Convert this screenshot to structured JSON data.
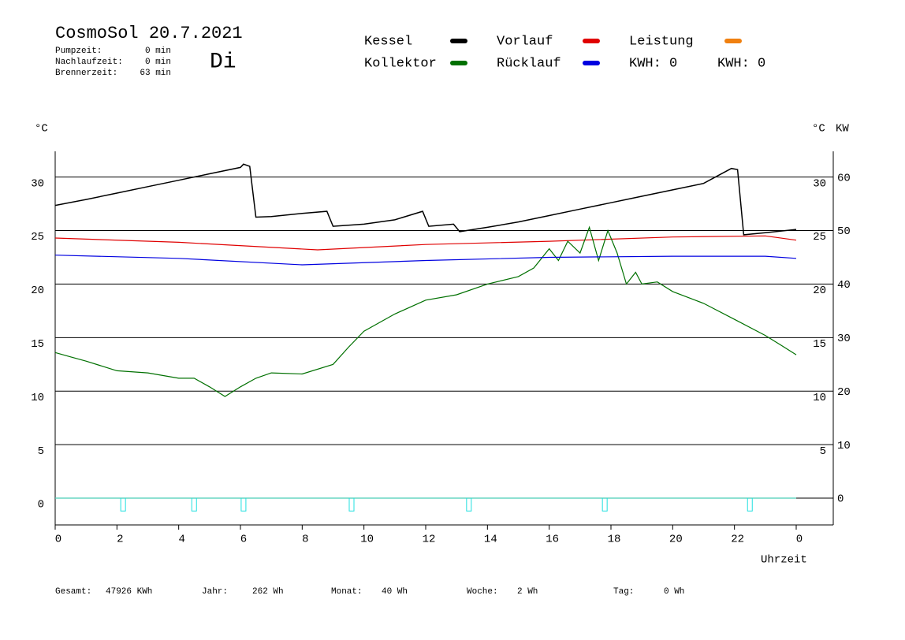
{
  "chart_data": {
    "type": "line",
    "title": "CosmoSol 20.7.2021",
    "weekday": "Di",
    "info": [
      [
        "Pumpzeit:",
        "0 min"
      ],
      [
        "Nachlaufzeit:",
        "0 min"
      ],
      [
        "Brennerzeit:",
        "63 min"
      ]
    ],
    "kwh_labels": [
      {
        "text": "KWH: 0",
        "color": "#e08a1e"
      },
      {
        "text": "KWH: 0",
        "color": "#8030a0"
      }
    ],
    "ylabel": "°C",
    "ylabel_right": "°C",
    "y2label": "KW",
    "xlabel": "Uhrzeit",
    "xlim": [
      0,
      25.2
    ],
    "xticks": [
      0,
      2,
      4,
      6,
      8,
      10,
      12,
      14,
      16,
      18,
      20,
      22,
      {
        "value": 24,
        "label": "0"
      }
    ],
    "ylim": [
      -2.5,
      32.4
    ],
    "yticks": [
      0,
      5,
      10,
      15,
      20,
      25,
      30
    ],
    "y_right_ticks": [
      5,
      10,
      15,
      20,
      25,
      30
    ],
    "y2lim": [
      -5,
      64.8
    ],
    "y2ticks": [
      0,
      10,
      20,
      30,
      40,
      50,
      60
    ],
    "grid": true,
    "series": [
      {
        "name": "Kessel",
        "color": "#000000",
        "x": [
          0,
          1,
          2,
          3,
          4,
          5,
          6,
          6.1,
          6.3,
          6.5,
          7,
          8,
          8.8,
          9,
          10,
          11,
          11.9,
          12.1,
          12.9,
          13.1,
          14,
          15,
          16,
          17,
          18,
          19,
          20,
          21,
          21.9,
          22.1,
          22.3,
          23,
          24
        ],
        "values": [
          27.35,
          27.9,
          28.5,
          29.1,
          29.7,
          30.3,
          30.9,
          31.2,
          31.0,
          26.25,
          26.3,
          26.6,
          26.8,
          25.4,
          25.6,
          26.0,
          26.8,
          25.4,
          25.6,
          24.9,
          25.3,
          25.8,
          26.4,
          27.0,
          27.6,
          28.2,
          28.8,
          29.4,
          30.8,
          30.7,
          24.6,
          24.8,
          25.1
        ]
      },
      {
        "name": "Vorlauf",
        "color": "#e00000",
        "x": [
          0,
          4,
          8.5,
          12,
          16,
          20,
          23,
          24
        ],
        "values": [
          24.3,
          23.9,
          23.2,
          23.7,
          24.0,
          24.4,
          24.5,
          24.1
        ]
      },
      {
        "name": "Leistung",
        "color": "#f08010",
        "axis": "y2",
        "x": [
          0,
          24
        ],
        "values": [
          0,
          0
        ]
      },
      {
        "name": "Kollektor",
        "color": "#007000",
        "x": [
          0,
          0.5,
          1,
          2,
          3,
          4,
          4.5,
          5,
          5.5,
          6,
          6.5,
          7,
          8,
          9,
          9.5,
          10,
          11,
          12,
          13,
          14,
          15,
          15.5,
          16,
          16.3,
          16.6,
          17,
          17.3,
          17.6,
          17.9,
          18.2,
          18.5,
          18.8,
          19,
          19.5,
          20,
          21,
          22,
          23,
          23.5,
          24
        ],
        "values": [
          13.6,
          13.2,
          12.8,
          11.9,
          11.7,
          11.2,
          11.2,
          10.4,
          9.5,
          10.4,
          11.2,
          11.7,
          11.6,
          12.5,
          14.1,
          15.6,
          17.2,
          18.5,
          19.0,
          20.0,
          20.7,
          21.5,
          23.3,
          22.2,
          24.0,
          22.9,
          25.3,
          22.2,
          25.0,
          22.9,
          20.0,
          21.1,
          20.0,
          20.2,
          19.3,
          18.2,
          16.7,
          15.2,
          14.3,
          13.4
        ]
      },
      {
        "name": "Rücklauf",
        "color": "#0000e0",
        "x": [
          0,
          4,
          8,
          12,
          16,
          20,
          23,
          24
        ],
        "values": [
          22.7,
          22.4,
          21.8,
          22.2,
          22.5,
          22.6,
          22.6,
          22.4
        ]
      },
      {
        "color": "#20e0e0",
        "style": "pulse",
        "x": [
          2.2,
          4.5,
          6.1,
          9.6,
          13.4,
          17.8,
          22.5
        ],
        "values": [
          -1.2,
          -1.2,
          -1.2,
          -1.2,
          -1.2,
          -1.2,
          -1.2
        ]
      }
    ],
    "footer": [
      [
        "Gesamt:",
        "47926 KWh"
      ],
      [
        "Jahr:",
        "262 Wh"
      ],
      [
        "Monat:",
        "40 Wh"
      ],
      [
        "Woche:",
        "2 Wh"
      ],
      [
        "Tag:",
        "0 Wh"
      ]
    ]
  }
}
